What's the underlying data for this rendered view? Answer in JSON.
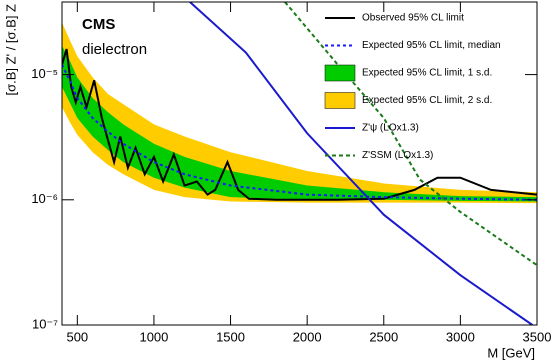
{
  "chart_data": {
    "type": "line",
    "texts": {
      "experiment": "CMS",
      "channel": "dielectron"
    },
    "xlabel": "M [GeV]",
    "ylabel": "[σ.B] Z' / [σ.B] Z",
    "xlim": [
      400,
      3500
    ],
    "xticks": [
      500,
      1000,
      1500,
      2000,
      2500,
      3000,
      3500
    ],
    "ylim": [
      1e-07,
      3.8e-05
    ],
    "log_y": true,
    "yticks": [
      {
        "value": 1e-07,
        "label": "10⁻⁷"
      },
      {
        "value": 1e-06,
        "label": "10⁻⁶"
      },
      {
        "value": 1e-05,
        "label": "10⁻⁵"
      }
    ],
    "legend": "upper right",
    "bands": [
      {
        "name": "Expected 95% CL limit, 2 s.d.",
        "color": "#ffcc00",
        "x": [
          400,
          450,
          500,
          600,
          700,
          800,
          1000,
          1200,
          1500,
          2000,
          2500,
          3000,
          3500
        ],
        "low": [
          5.5e-06,
          4.2e-06,
          3.3e-06,
          2.4e-06,
          1.9e-06,
          1.6e-06,
          1.2e-06,
          1.05e-06,
          9.7e-07,
          9.5e-07,
          9.5e-07,
          9.5e-07,
          9.4e-07
        ],
        "high": [
          2.6e-05,
          1.9e-05,
          1.4e-05,
          9.5e-06,
          7e-06,
          5.8e-06,
          4e-06,
          3.2e-06,
          2.4e-06,
          1.7e-06,
          1.35e-06,
          1.2e-06,
          1.15e-06
        ]
      },
      {
        "name": "Expected 95% CL limit, 1 s.d.",
        "color": "#00cc00",
        "x": [
          400,
          450,
          500,
          600,
          700,
          800,
          1000,
          1200,
          1500,
          2000,
          2500,
          3000,
          3500
        ],
        "low": [
          8e-06,
          6e-06,
          4.5e-06,
          3.2e-06,
          2.5e-06,
          2e-06,
          1.5e-06,
          1.25e-06,
          1.05e-06,
          1e-06,
          1e-06,
          9.8e-07,
          9.7e-07
        ],
        "high": [
          1.7e-05,
          1.3e-05,
          9.5e-06,
          6.5e-06,
          5e-06,
          4e-06,
          2.8e-06,
          2.2e-06,
          1.7e-06,
          1.3e-06,
          1.15e-06,
          1.07e-06,
          1.05e-06
        ]
      }
    ],
    "series": [
      {
        "name": "Observed 95% CL limit",
        "color": "#000000",
        "dash": "solid",
        "x": [
          400,
          430,
          460,
          490,
          520,
          560,
          610,
          660,
          700,
          740,
          780,
          830,
          880,
          940,
          1000,
          1060,
          1130,
          1200,
          1280,
          1350,
          1400,
          1480,
          1550,
          1620,
          1800,
          2200,
          2500,
          2700,
          2850,
          3000,
          3200,
          3500
        ],
        "values": [
          1.2e-05,
          1.6e-05,
          8e-06,
          6e-06,
          8e-06,
          5.5e-06,
          9e-06,
          4.5e-06,
          3e-06,
          2e-06,
          3.2e-06,
          1.8e-06,
          2.6e-06,
          1.6e-06,
          2.2e-06,
          1.4e-06,
          2.3e-06,
          1.3e-06,
          1.4e-06,
          1.1e-06,
          1.2e-06,
          2e-06,
          1.2e-06,
          1.02e-06,
          1e-06,
          1e-06,
          1.02e-06,
          1.2e-06,
          1.5e-06,
          1.5e-06,
          1.2e-06,
          1.1e-06
        ]
      },
      {
        "name": "Expected 95% CL limit, median",
        "color": "#1a1aff",
        "dash": "dotted",
        "x": [
          400,
          450,
          500,
          600,
          700,
          800,
          1000,
          1200,
          1500,
          2000,
          2500,
          3000,
          3500
        ],
        "values": [
          1.2e-05,
          9e-06,
          6.5e-06,
          4.5e-06,
          3.5e-06,
          2.8e-06,
          2e-06,
          1.6e-06,
          1.3e-06,
          1.1e-06,
          1.05e-06,
          1.02e-06,
          1e-06
        ]
      },
      {
        "name": "Z'ψ (LOx1.3)",
        "color": "#1a1acc",
        "dash": "solid",
        "x": [
          1235,
          1600,
          2000,
          2500,
          3000,
          3470
        ],
        "values": [
          3.8e-05,
          1.5e-05,
          3.4e-06,
          7.6e-07,
          2.5e-07,
          1e-07
        ]
      },
      {
        "name": "Z'SSM (LOx1.3)",
        "color": "#1a7a1a",
        "dash": "dashed",
        "x": [
          1855,
          2200,
          2500,
          2736,
          3000,
          3500
        ],
        "values": [
          3.8e-05,
          1.2e-05,
          4.5e-06,
          1.45e-06,
          8e-07,
          3e-07
        ]
      }
    ]
  }
}
